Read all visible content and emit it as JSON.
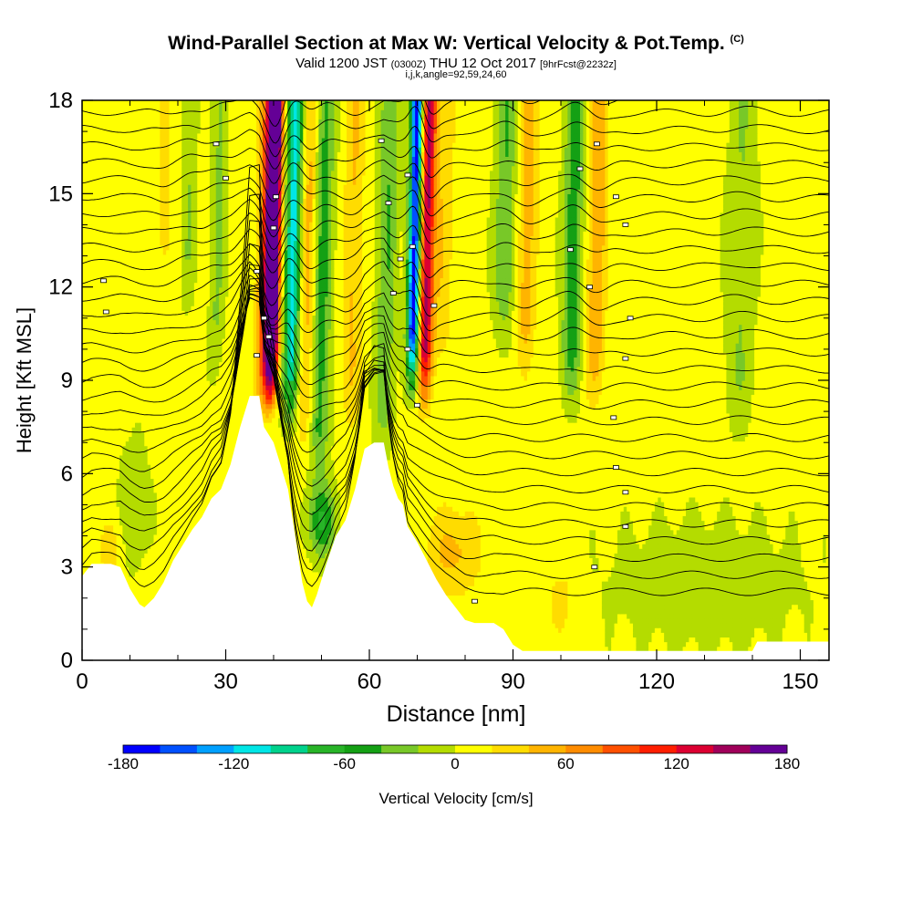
{
  "chart_data": {
    "type": "heatmap",
    "title": "Wind-Parallel Section at Max W: Vertical Velocity & Pot.Temp.",
    "title_suffix": "(C)",
    "subtitle": {
      "prefix": "Valid 1200 JST",
      "zulu": "(0300Z)",
      "date": "THU 12 Oct 2017",
      "forecast": "[9hrFcst@2232z]"
    },
    "info_line": "i,j,k,angle=92,59,24,60",
    "xlabel": "Distance [nm]",
    "ylabel": "Height [Kft MSL]",
    "xlim": [
      0,
      156
    ],
    "ylim": [
      0,
      18
    ],
    "x_ticks": [
      "0",
      "30",
      "60",
      "90",
      "120",
      "150"
    ],
    "y_ticks": [
      "0",
      "3",
      "6",
      "9",
      "12",
      "15",
      "18"
    ],
    "colorbar": {
      "label": "Vertical Velocity [cm/s]",
      "range": [
        -180,
        180
      ],
      "tick_labels": [
        "-180",
        "-120",
        "-60",
        "0",
        "60",
        "120",
        "180"
      ],
      "colors": [
        "#0000ff",
        "#0050ff",
        "#00a0ff",
        "#00e6e6",
        "#00d28c",
        "#28b428",
        "#14a014",
        "#78c828",
        "#b4dc00",
        "#ffff00",
        "#ffdc00",
        "#ffb400",
        "#ff8c00",
        "#ff5000",
        "#ff1e00",
        "#dc0032",
        "#a0005a",
        "#640096"
      ]
    },
    "terrain": [
      [
        0,
        2.7
      ],
      [
        2,
        3.1
      ],
      [
        5,
        3.1
      ],
      [
        6,
        3.1
      ],
      [
        8,
        3.0
      ],
      [
        10,
        2.3
      ],
      [
        12,
        1.8
      ],
      [
        13,
        1.7
      ],
      [
        15,
        2.0
      ],
      [
        17,
        2.5
      ],
      [
        19,
        3.2
      ],
      [
        21,
        3.7
      ],
      [
        23,
        4.2
      ],
      [
        25,
        4.6
      ],
      [
        27,
        5.2
      ],
      [
        29,
        5.5
      ],
      [
        31,
        6.3
      ],
      [
        33,
        7.5
      ],
      [
        35,
        8.5
      ],
      [
        37,
        8.5
      ],
      [
        38,
        7.5
      ],
      [
        40,
        7.0
      ],
      [
        41,
        6.5
      ],
      [
        43,
        5.5
      ],
      [
        44,
        4.5
      ],
      [
        45,
        3.5
      ],
      [
        46,
        2.5
      ],
      [
        47,
        1.9
      ],
      [
        48,
        1.7
      ],
      [
        49,
        2.1
      ],
      [
        51,
        3.1
      ],
      [
        53,
        4.0
      ],
      [
        55,
        4.5
      ],
      [
        57,
        5.5
      ],
      [
        59,
        6.8
      ],
      [
        61,
        7.0
      ],
      [
        63,
        7.0
      ],
      [
        64,
        6.2
      ],
      [
        65,
        5.6
      ],
      [
        66,
        5.2
      ],
      [
        67,
        5.0
      ],
      [
        68,
        4.3
      ],
      [
        70,
        3.8
      ],
      [
        72,
        3.2
      ],
      [
        74,
        2.6
      ],
      [
        76,
        2.1
      ],
      [
        78,
        1.7
      ],
      [
        80,
        1.3
      ],
      [
        82,
        1.2
      ],
      [
        84,
        1.2
      ],
      [
        86,
        1.2
      ],
      [
        88,
        1.0
      ],
      [
        90,
        0.5
      ],
      [
        92,
        0.3
      ],
      [
        95,
        0.3
      ],
      [
        100,
        0.3
      ],
      [
        110,
        0.3
      ],
      [
        120,
        0.3
      ],
      [
        130,
        0.3
      ],
      [
        135,
        0.3
      ],
      [
        140,
        0.3
      ],
      [
        141,
        0.6
      ],
      [
        146,
        0.6
      ],
      [
        150,
        0.6
      ],
      [
        156,
        0.6
      ]
    ],
    "plumes": [
      {
        "x": 39.5,
        "w": 1.3,
        "z0": 9.2,
        "vel": 175
      },
      {
        "x": 38.5,
        "w": 2.0,
        "z0": 8.8,
        "vel": 120
      },
      {
        "x": 43.5,
        "w": 1.7,
        "z0": 8.4,
        "vel": -115
      },
      {
        "x": 46.5,
        "w": 1.8,
        "z0": 7.5,
        "vel": 45
      },
      {
        "x": 49.5,
        "w": 2.0,
        "z0": 6.5,
        "vel": -55
      },
      {
        "x": 56.0,
        "w": 2.0,
        "z0": 8.0,
        "vel": 35
      },
      {
        "x": 63.0,
        "w": 2.0,
        "z0": 7.5,
        "vel": -45
      },
      {
        "x": 69.0,
        "w": 1.3,
        "z0": 9.5,
        "vel": -180
      },
      {
        "x": 71.5,
        "w": 1.5,
        "z0": 9.0,
        "vel": 140
      },
      {
        "x": 75.0,
        "w": 2.0,
        "z0": 10.0,
        "vel": 30
      },
      {
        "x": 88.0,
        "w": 2.2,
        "z0": 11.0,
        "vel": -45
      },
      {
        "x": 92.5,
        "w": 2.0,
        "z0": 10.0,
        "vel": 45
      },
      {
        "x": 102.0,
        "w": 2.0,
        "z0": 9.0,
        "vel": -60
      },
      {
        "x": 107.0,
        "w": 2.0,
        "z0": 9.0,
        "vel": 50
      },
      {
        "x": 28.0,
        "w": 1.5,
        "z0": 10.0,
        "vel": -30
      },
      {
        "x": 22.0,
        "w": 1.5,
        "z0": 12.0,
        "vel": -25
      },
      {
        "x": 17.0,
        "w": 1.5,
        "z0": 13.0,
        "vel": 25
      },
      {
        "x": 137.0,
        "w": 3.0,
        "z0": 8.0,
        "vel": -25
      }
    ],
    "blobs": [
      {
        "x": 50.0,
        "z": 4.5,
        "rx": 3.0,
        "rz": 1.1,
        "vel": -70
      },
      {
        "x": 77.5,
        "z": 3.5,
        "rx": 5.5,
        "rz": 1.4,
        "vel": 40
      },
      {
        "x": 100.0,
        "z": 2.0,
        "rx": 4.0,
        "rz": 1.5,
        "vel": 20
      },
      {
        "x": 130.0,
        "z": 2.5,
        "rx": 20.0,
        "rz": 2.0,
        "vel": -20
      },
      {
        "x": 11.0,
        "z": 5.0,
        "rx": 3.0,
        "rz": 2.0,
        "vel": -25
      },
      {
        "x": 6.0,
        "z": 3.5,
        "rx": 2.5,
        "rz": 1.0,
        "vel": 25
      }
    ],
    "theta_lines": {
      "count": 30,
      "base_height": 2.2,
      "spacing": 0.55
    },
    "theta_labels": [
      {
        "x": 4.5,
        "z": 12.2
      },
      {
        "x": 5.0,
        "z": 11.2
      },
      {
        "x": 28.0,
        "z": 16.6
      },
      {
        "x": 30.0,
        "z": 15.5
      },
      {
        "x": 36.5,
        "z": 12.5
      },
      {
        "x": 38.0,
        "z": 11.0
      },
      {
        "x": 39.0,
        "z": 10.4
      },
      {
        "x": 40.0,
        "z": 13.9
      },
      {
        "x": 40.5,
        "z": 14.9
      },
      {
        "x": 36.5,
        "z": 9.8
      },
      {
        "x": 62.5,
        "z": 16.7
      },
      {
        "x": 64.0,
        "z": 14.7
      },
      {
        "x": 65.0,
        "z": 11.8
      },
      {
        "x": 66.5,
        "z": 12.9
      },
      {
        "x": 68.0,
        "z": 15.6
      },
      {
        "x": 69.0,
        "z": 13.3
      },
      {
        "x": 68.0,
        "z": 10.0
      },
      {
        "x": 70.0,
        "z": 8.2
      },
      {
        "x": 73.5,
        "z": 11.4
      },
      {
        "x": 82.0,
        "z": 1.9
      },
      {
        "x": 102.0,
        "z": 13.2
      },
      {
        "x": 104.0,
        "z": 15.8
      },
      {
        "x": 107.5,
        "z": 16.6
      },
      {
        "x": 106.0,
        "z": 12.0
      },
      {
        "x": 111.5,
        "z": 14.9
      },
      {
        "x": 113.5,
        "z": 14.0
      },
      {
        "x": 114.5,
        "z": 11.0
      },
      {
        "x": 113.5,
        "z": 9.7
      },
      {
        "x": 111.0,
        "z": 7.8
      },
      {
        "x": 111.5,
        "z": 6.2
      },
      {
        "x": 113.5,
        "z": 5.4
      },
      {
        "x": 113.5,
        "z": 4.3
      },
      {
        "x": 107.0,
        "z": 3.0
      }
    ]
  }
}
